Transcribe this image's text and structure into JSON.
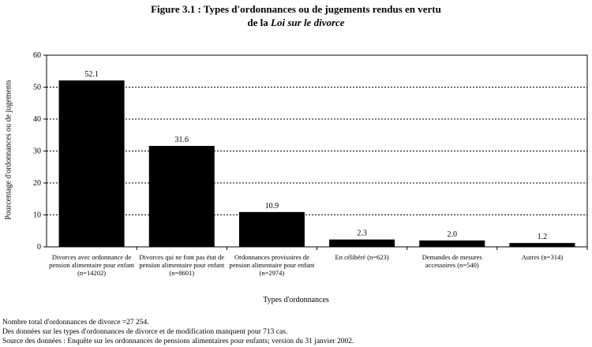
{
  "title_line1": "Figure 3.1 : Types d'ordonnances ou de jugements rendus en vertu",
  "title_line2_prefix": "de la ",
  "title_line2_italic": "Loi sur le divorce",
  "chart_data": {
    "type": "bar",
    "categories": [
      [
        "Divorces avec ordonnance de",
        "pension alimentaire pour enfant",
        "(n=14202)"
      ],
      [
        "Divorces qui ne font pas état de",
        "pension alimentaire pour enfant",
        "(n=8601)"
      ],
      [
        "Ordonnances provisoires de",
        "pension alimentaire pour enfant",
        "(n=2974)"
      ],
      [
        "En célibéré (n=623)"
      ],
      [
        "Demandes de mesures",
        "accessoires (n=540)"
      ],
      [
        "Autres (n=314)"
      ]
    ],
    "values": [
      52.1,
      31.6,
      10.9,
      2.3,
      2.0,
      1.2
    ],
    "value_labels": [
      "52.1",
      "31.6",
      "10.9",
      "2.3",
      "2.0",
      "1.2"
    ],
    "ylim": [
      0,
      60
    ],
    "yticks": [
      "0",
      "10",
      "20",
      "30",
      "40",
      "50",
      "60"
    ],
    "ylabel": "Pourcentage d'ordonnances ou de jugements",
    "xlabel": "Types d'ordonnances",
    "grid": true,
    "bar_color": "#000000"
  },
  "notes": [
    "Nombre total d'ordonnances de divorce =27 254.",
    "Des données sur les types d'ordonnances de divorce et de modification manquent pour  713 cas.",
    "Source des données : Enquête sur les ordonnances de pensions alimentaires pour enfants; version du 31 janvier 2002."
  ]
}
